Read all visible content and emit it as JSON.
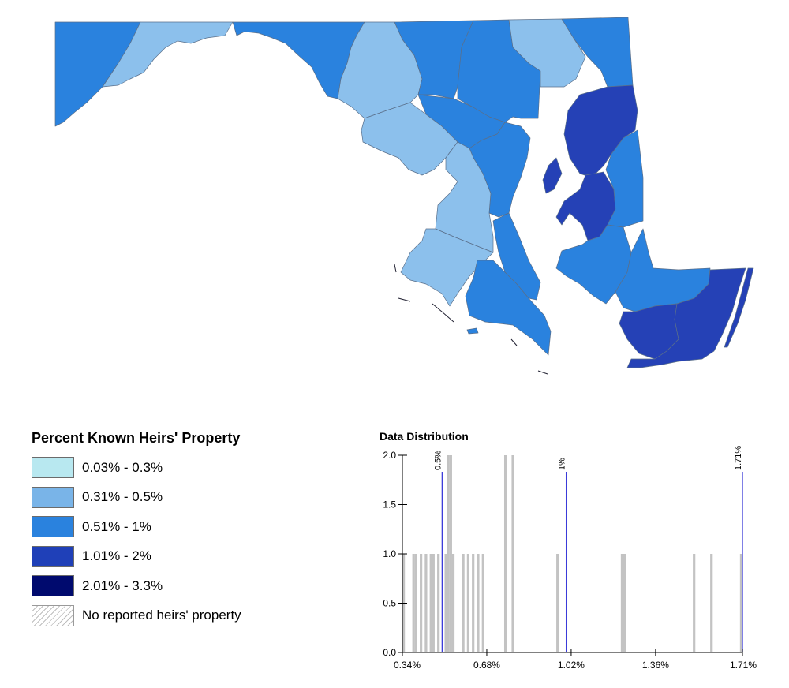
{
  "legend": {
    "title": "Percent Known Heirs' Property",
    "classes": [
      {
        "label": "0.03% - 0.3%",
        "color": "#b8e8f0"
      },
      {
        "label": "0.31% - 0.5%",
        "color": "#79b4e8"
      },
      {
        "label": "0.51% - 1%",
        "color": "#2a82de"
      },
      {
        "label": "1.01% - 2%",
        "color": "#1f40b8"
      },
      {
        "label": "2.01% - 3.3%",
        "color": "#000a6e"
      }
    ],
    "no_data_label": "No reported heirs' property"
  },
  "map_colors": {
    "class2_fill": "#8cc0ec",
    "class3_fill": "#2a82de",
    "class4_fill": "#2541b6",
    "border": "#5a6f8a"
  },
  "chart_data": {
    "type": "bar",
    "title": "Data Distribution",
    "xlim": [
      0.34,
      1.71
    ],
    "ylim": [
      0,
      2.0
    ],
    "x_ticks": [
      "0.34%",
      "0.68%",
      "1.02%",
      "1.36%",
      "1.71%"
    ],
    "x_tick_values": [
      0.34,
      0.68,
      1.02,
      1.36,
      1.71
    ],
    "y_ticks": [
      "0.0",
      "0.5",
      "1.0",
      "1.5",
      "2.0"
    ],
    "y_tick_values": [
      0,
      0.5,
      1.0,
      1.5,
      2.0
    ],
    "bars": [
      {
        "x": 0.34,
        "count": 1
      },
      {
        "x": 0.38,
        "count": 1
      },
      {
        "x": 0.39,
        "count": 1
      },
      {
        "x": 0.41,
        "count": 1
      },
      {
        "x": 0.43,
        "count": 1
      },
      {
        "x": 0.45,
        "count": 1
      },
      {
        "x": 0.46,
        "count": 1
      },
      {
        "x": 0.48,
        "count": 1
      },
      {
        "x": 0.51,
        "count": 1
      },
      {
        "x": 0.52,
        "count": 2
      },
      {
        "x": 0.53,
        "count": 2
      },
      {
        "x": 0.54,
        "count": 1
      },
      {
        "x": 0.58,
        "count": 1
      },
      {
        "x": 0.6,
        "count": 1
      },
      {
        "x": 0.62,
        "count": 1
      },
      {
        "x": 0.64,
        "count": 1
      },
      {
        "x": 0.66,
        "count": 1
      },
      {
        "x": 0.75,
        "count": 2
      },
      {
        "x": 0.78,
        "count": 2
      },
      {
        "x": 0.96,
        "count": 1
      },
      {
        "x": 1.22,
        "count": 1
      },
      {
        "x": 1.23,
        "count": 1
      },
      {
        "x": 1.51,
        "count": 1
      },
      {
        "x": 1.58,
        "count": 1
      },
      {
        "x": 1.7,
        "count": 1
      }
    ],
    "class_breaks": [
      {
        "value": 0.5,
        "label": "0.5%"
      },
      {
        "value": 1.0,
        "label": "1%"
      },
      {
        "value": 1.71,
        "label": "1.71%"
      }
    ],
    "bar_color": "#c3c3c3",
    "break_line_color": "#3b3bd9"
  }
}
